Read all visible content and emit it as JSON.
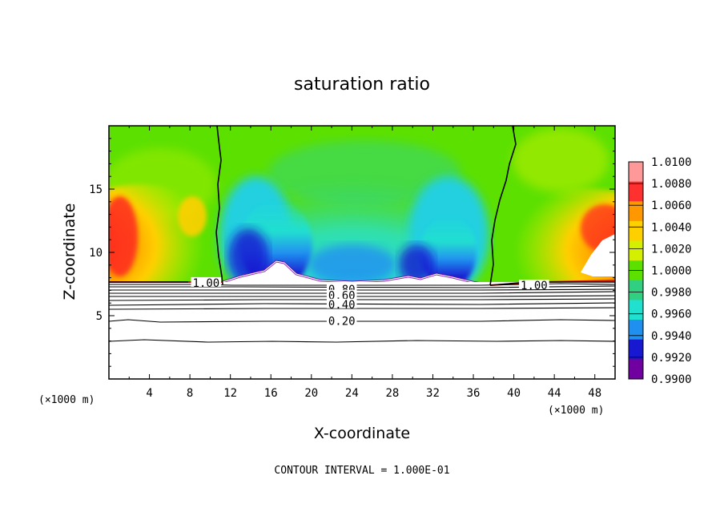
{
  "chart_data": {
    "type": "heatmap",
    "title": "saturation ratio",
    "xlabel": "X-coordinate",
    "ylabel": "Z-coordinate",
    "x_unit_left": "(×1000 m)",
    "x_unit_right": "(×1000 m)",
    "xlim": [
      0,
      50
    ],
    "ylim": [
      0,
      20
    ],
    "x_ticks": [
      4,
      8,
      12,
      16,
      20,
      24,
      28,
      32,
      36,
      40,
      44,
      48
    ],
    "y_ticks": [
      5,
      10,
      15
    ],
    "footer": "CONTOUR INTERVAL = 1.000E-01",
    "colorbar": {
      "labels": [
        "1.0100",
        "1.0080",
        "1.0060",
        "1.0040",
        "1.0020",
        "1.0000",
        "0.9980",
        "0.9960",
        "0.9940",
        "0.9920",
        "0.9900"
      ],
      "colors": [
        "#ff9898",
        "#ff3030",
        "#ff9800",
        "#ffd000",
        "#d4f000",
        "#5ce000",
        "#30d080",
        "#20e0d0",
        "#2090f0",
        "#1818d0",
        "#7000a0"
      ]
    },
    "contour_labels": [
      {
        "text": "1.00",
        "x": 9.6,
        "z": 7.6
      },
      {
        "text": "1.00",
        "x": 42.0,
        "z": 7.4
      },
      {
        "text": "0.80",
        "x": 23.0,
        "z": 7.1
      },
      {
        "text": "0.60",
        "x": 23.0,
        "z": 6.6
      },
      {
        "text": "0.40",
        "x": 23.0,
        "z": 5.9
      },
      {
        "text": "0.20",
        "x": 23.0,
        "z": 4.6
      }
    ]
  }
}
